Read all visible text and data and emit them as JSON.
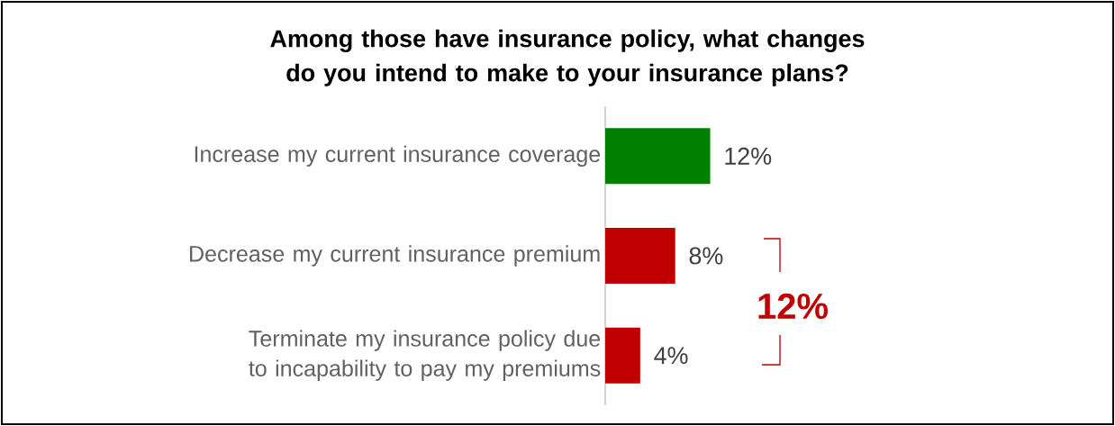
{
  "chart_data": {
    "type": "bar",
    "orientation": "horizontal",
    "title": "Among those have insurance policy, what changes do you intend to make to your insurance plans?",
    "categories": [
      "Increase my current insurance coverage",
      "Decrease my current insurance premium",
      "Terminate my insurance policy due to incapability to pay my premiums"
    ],
    "values": [
      12,
      8,
      4
    ],
    "colors": [
      "#008000",
      "#c00000",
      "#c00000"
    ],
    "value_labels": [
      "12%",
      "8%",
      "4%"
    ],
    "annotations": [
      "12%"
    ]
  }
}
